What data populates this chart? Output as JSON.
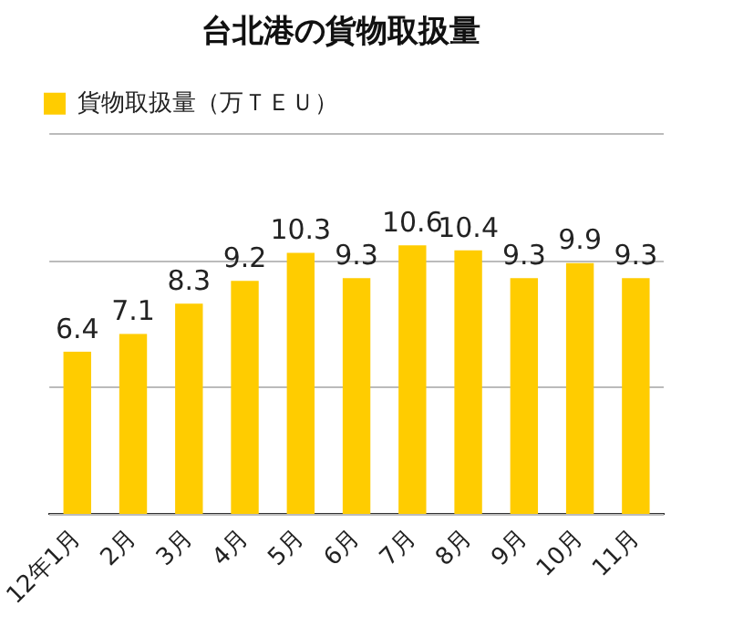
{
  "chart_data": {
    "type": "bar",
    "title": "台北港の貨物取扱量",
    "categories": [
      "12年1月",
      "2月",
      "3月",
      "4月",
      "5月",
      "6月",
      "7月",
      "8月",
      "9月",
      "10月",
      "11月"
    ],
    "series": [
      {
        "name": "貨物取扱量（万ＴＥＵ）",
        "color": "#ffcc00",
        "values": [
          6.4,
          7.1,
          8.3,
          9.2,
          10.3,
          9.3,
          10.6,
          10.4,
          9.3,
          9.9,
          9.3
        ]
      }
    ],
    "ylim": [
      0,
      15
    ],
    "yticks": [
      {
        "value": 0,
        "label": null
      },
      {
        "value": 5,
        "label": null
      },
      {
        "value": 10,
        "label": null
      },
      {
        "value": 15,
        "label": null
      }
    ],
    "tick_labels": "x",
    "grid": "y",
    "legend": "top left",
    "data_labels": true
  }
}
